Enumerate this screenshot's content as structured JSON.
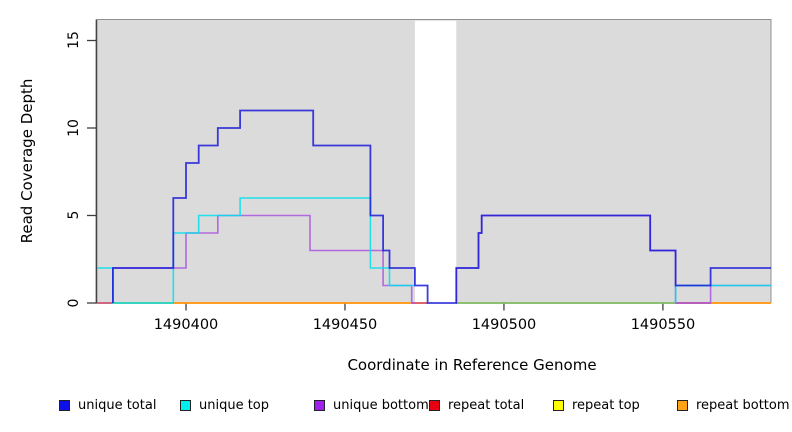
{
  "chart_data": {
    "type": "step-line",
    "title": "",
    "xlabel": "Coordinate in Reference Genome",
    "ylabel": "Read Coverage Depth",
    "xlim": [
      1490372,
      1490584
    ],
    "ylim": [
      0,
      16.2
    ],
    "grid": false,
    "plot_background": "#DBDBDB",
    "plot_border_color": "#909090",
    "axis_color": "#3f3f3f",
    "no_data_gap": {
      "from": 1490472,
      "to": 1490485,
      "color": "#FFFFFF"
    },
    "xticks": [
      {
        "value": 1490400,
        "label": "1490400"
      },
      {
        "value": 1490450,
        "label": "1490450"
      },
      {
        "value": 1490500,
        "label": "1490500"
      },
      {
        "value": 1490550,
        "label": "1490550"
      }
    ],
    "yticks": [
      {
        "value": 0,
        "label": "0"
      },
      {
        "value": 5,
        "label": "5"
      },
      {
        "value": 10,
        "label": "10"
      },
      {
        "value": 15,
        "label": "15"
      }
    ],
    "baseline_segments": [
      {
        "from": 1490372,
        "to": 1490377,
        "color": "#C75B8E"
      },
      {
        "from": 1490377,
        "to": 1490396,
        "color": "#7CC47C"
      },
      {
        "from": 1490396,
        "to": 1490471,
        "color": "#FF9C20"
      },
      {
        "from": 1490471,
        "to": 1490476,
        "color": "#D8505A"
      },
      {
        "from": 1490485,
        "to": 1490554,
        "color": "#7CC47C"
      },
      {
        "from": 1490554,
        "to": 1490565,
        "color": "#C25585"
      },
      {
        "from": 1490565,
        "to": 1490584,
        "color": "#FF9C20"
      }
    ],
    "series": [
      {
        "name": "repeat total",
        "color": "#E60000",
        "opacity": 0.9,
        "width": 1.6,
        "segments": [
          {
            "steps": [
              [
                1490372,
                0
              ]
            ],
            "end": 1490472
          },
          {
            "steps": [
              [
                1490485,
                0
              ]
            ],
            "end": 1490584
          }
        ]
      },
      {
        "name": "repeat top",
        "color": "#FFEB00",
        "opacity": 0.9,
        "width": 1.6,
        "segments": [
          {
            "steps": [
              [
                1490372,
                0
              ]
            ],
            "end": 1490472
          },
          {
            "steps": [
              [
                1490485,
                0
              ]
            ],
            "end": 1490584
          }
        ]
      },
      {
        "name": "repeat bottom",
        "color": "#FF9C20",
        "opacity": 0.9,
        "width": 1.6,
        "segments": [
          {
            "steps": [
              [
                1490372,
                0
              ]
            ],
            "end": 1490472
          },
          {
            "steps": [
              [
                1490485,
                0
              ]
            ],
            "end": 1490584
          }
        ]
      },
      {
        "name": "unique bottom",
        "color": "#AC5CE0",
        "opacity": 0.9,
        "width": 1.6,
        "segments": [
          {
            "steps": [
              [
                1490377,
                0
              ],
              [
                1490377,
                2
              ],
              [
                1490400,
                4
              ],
              [
                1490410,
                5
              ],
              [
                1490439,
                3
              ],
              [
                1490462,
                1
              ],
              [
                1490471,
                0
              ]
            ],
            "end": 1490472
          },
          {
            "steps": [
              [
                1490485,
                0
              ],
              [
                1490485,
                2
              ],
              [
                1490492,
                4
              ],
              [
                1490493,
                5
              ],
              [
                1490546,
                3
              ],
              [
                1490554,
                0
              ],
              [
                1490565,
                1
              ]
            ],
            "end": 1490584
          }
        ]
      },
      {
        "name": "unique top",
        "color": "#00E0EE",
        "opacity": 0.85,
        "width": 1.6,
        "segments": [
          {
            "steps": [
              [
                1490372,
                2
              ],
              [
                1490377,
                0
              ],
              [
                1490396,
                4
              ],
              [
                1490404,
                5
              ],
              [
                1490417,
                6
              ],
              [
                1490458,
                2
              ],
              [
                1490464,
                1
              ]
            ],
            "end": 1490472
          },
          {
            "steps": [
              [
                1490554,
                0
              ],
              [
                1490554,
                1
              ]
            ],
            "end": 1490584
          }
        ]
      },
      {
        "name": "unique total",
        "color": "#1B1BD8",
        "opacity": 0.85,
        "width": 1.8,
        "segments": [
          {
            "steps": [
              [
                1490377,
                0
              ],
              [
                1490377,
                2
              ],
              [
                1490396,
                6
              ],
              [
                1490400,
                8
              ],
              [
                1490404,
                9
              ],
              [
                1490410,
                10
              ],
              [
                1490417,
                11
              ],
              [
                1490440,
                9
              ],
              [
                1490458,
                5
              ],
              [
                1490462,
                3
              ],
              [
                1490464,
                2
              ],
              [
                1490472,
                1
              ],
              [
                1490476,
                0
              ],
              [
                1490485,
                2
              ],
              [
                1490492,
                4
              ],
              [
                1490493,
                5
              ],
              [
                1490546,
                3
              ],
              [
                1490554,
                1
              ],
              [
                1490565,
                2
              ]
            ],
            "end": 1490584
          }
        ]
      }
    ],
    "legend": [
      {
        "label": "unique total",
        "color": "#0F0FE8"
      },
      {
        "label": "unique top",
        "color": "#00EEEE"
      },
      {
        "label": "unique bottom",
        "color": "#A020F0"
      },
      {
        "label": "repeat total",
        "color": "#E60012"
      },
      {
        "label": "repeat top",
        "color": "#FFFF00"
      },
      {
        "label": "repeat bottom",
        "color": "#FFA216"
      }
    ],
    "legend_position": "bottom"
  }
}
